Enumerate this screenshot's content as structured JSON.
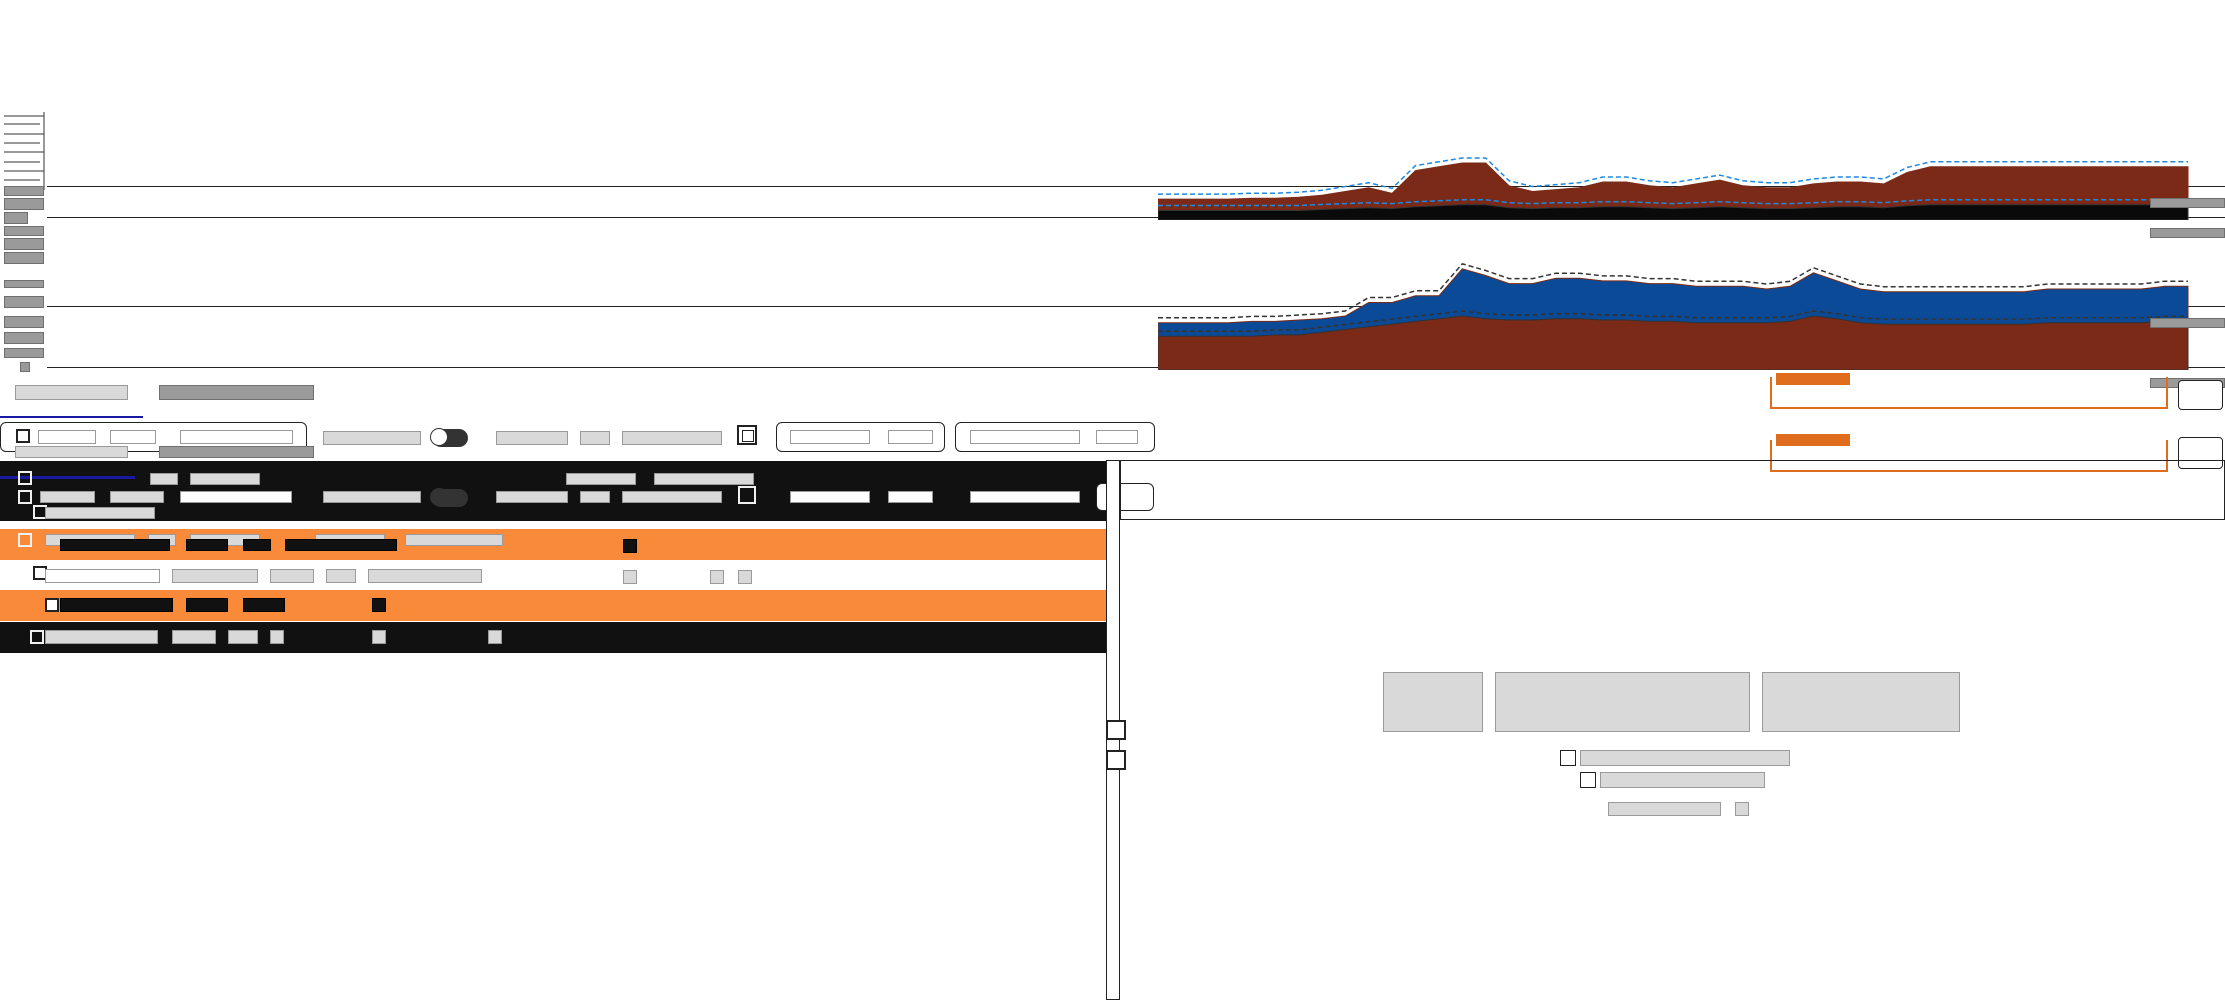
{
  "app": {
    "theme_colors": {
      "primary_fill": "#7a2a16",
      "secondary_fill": "#0b4a96",
      "dark_fill": "#0a0a0a",
      "accent_orange": "#f98a3a",
      "toolbar_orange": "#e06c1e",
      "dash_blue": "#1e88e5",
      "divider_navy": "#1a1aa0"
    }
  },
  "chart_data": [
    {
      "type": "area",
      "series": [
        {
          "values": [
            0.22,
            0.22,
            0.22,
            0.22,
            0.23,
            0.23,
            0.24,
            0.26,
            0.3,
            0.34,
            0.28,
            0.52,
            0.56,
            0.6,
            0.6,
            0.36,
            0.3,
            0.32,
            0.34,
            0.4,
            0.4,
            0.36,
            0.34,
            0.38,
            0.42,
            0.36,
            0.34,
            0.34,
            0.38,
            0.4,
            0.4,
            0.38,
            0.5,
            0.56,
            0.56,
            0.56,
            0.56,
            0.56,
            0.56,
            0.56,
            0.56,
            0.56,
            0.56,
            0.56,
            0.56
          ]
        },
        {
          "values": [
            0.1,
            0.1,
            0.1,
            0.1,
            0.1,
            0.1,
            0.1,
            0.11,
            0.12,
            0.13,
            0.12,
            0.14,
            0.15,
            0.16,
            0.16,
            0.13,
            0.12,
            0.13,
            0.13,
            0.14,
            0.14,
            0.13,
            0.12,
            0.13,
            0.14,
            0.13,
            0.12,
            0.12,
            0.13,
            0.14,
            0.14,
            0.13,
            0.15,
            0.16,
            0.16,
            0.16,
            0.16,
            0.16,
            0.16,
            0.16,
            0.16,
            0.16,
            0.16,
            0.16,
            0.16
          ]
        }
      ]
    },
    {
      "type": "area",
      "series": [
        {
          "values": [
            0.35,
            0.35,
            0.35,
            0.35,
            0.36,
            0.36,
            0.37,
            0.38,
            0.4,
            0.5,
            0.5,
            0.55,
            0.55,
            0.75,
            0.7,
            0.64,
            0.64,
            0.68,
            0.68,
            0.66,
            0.66,
            0.64,
            0.64,
            0.62,
            0.62,
            0.62,
            0.6,
            0.62,
            0.72,
            0.66,
            0.6,
            0.58,
            0.58,
            0.58,
            0.58,
            0.58,
            0.58,
            0.58,
            0.6,
            0.6,
            0.6,
            0.6,
            0.6,
            0.62,
            0.62
          ]
        },
        {
          "values": [
            0.25,
            0.25,
            0.25,
            0.25,
            0.25,
            0.26,
            0.26,
            0.28,
            0.3,
            0.32,
            0.34,
            0.36,
            0.38,
            0.4,
            0.38,
            0.37,
            0.37,
            0.38,
            0.38,
            0.37,
            0.37,
            0.36,
            0.36,
            0.35,
            0.35,
            0.35,
            0.35,
            0.36,
            0.4,
            0.38,
            0.35,
            0.34,
            0.34,
            0.34,
            0.34,
            0.34,
            0.34,
            0.34,
            0.35,
            0.35,
            0.35,
            0.35,
            0.35,
            0.36,
            0.36
          ]
        }
      ]
    }
  ]
}
